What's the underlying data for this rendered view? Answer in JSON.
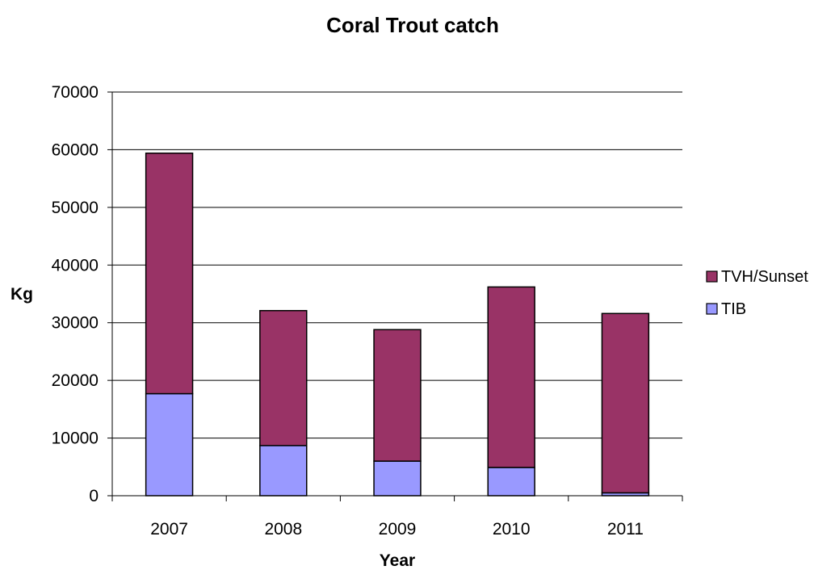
{
  "chart_data": {
    "type": "bar",
    "stacked": true,
    "title": "Coral Trout catch",
    "xlabel": "Year",
    "ylabel": "Kg",
    "categories": [
      "2007",
      "2008",
      "2009",
      "2010",
      "2011"
    ],
    "ylim": [
      0,
      70000
    ],
    "yticks": [
      0,
      10000,
      20000,
      30000,
      40000,
      50000,
      60000,
      70000
    ],
    "grid": true,
    "legend": "right",
    "series": [
      {
        "name": "TIB",
        "color": "#9999FF",
        "values": [
          17700,
          8700,
          6000,
          4900,
          500
        ]
      },
      {
        "name": "TVH/Sunset",
        "color": "#993366",
        "values": [
          41700,
          23400,
          22800,
          31300,
          31100
        ]
      }
    ],
    "legend_order": [
      "TVH/Sunset",
      "TIB"
    ]
  }
}
